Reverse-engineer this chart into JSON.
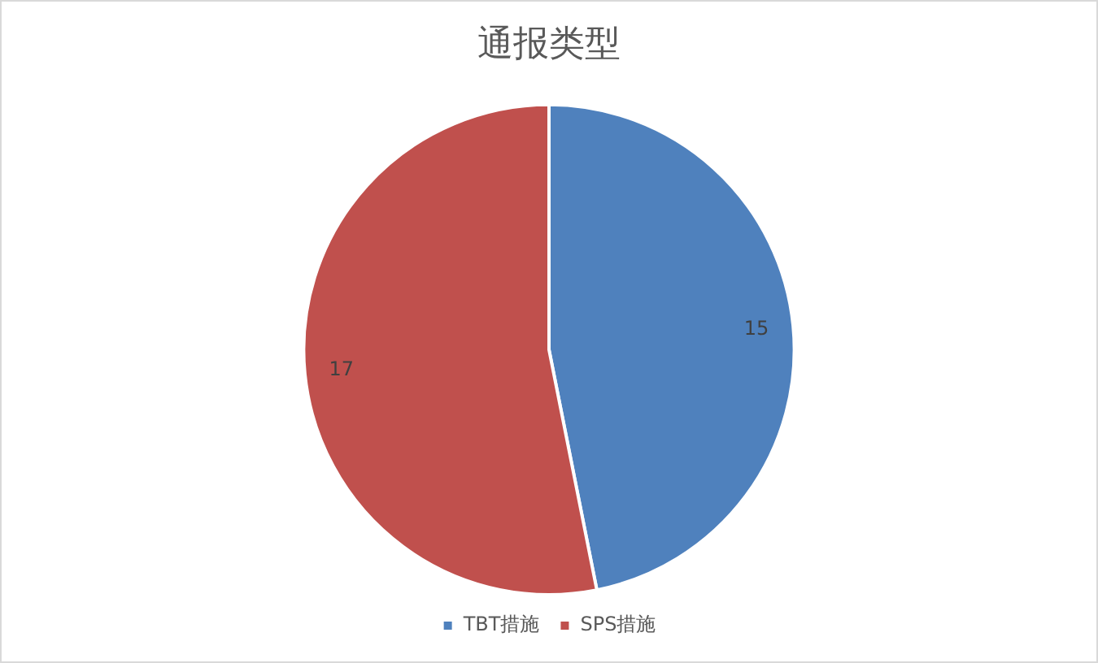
{
  "chart_data": {
    "type": "pie",
    "title": "通报类型",
    "categories": [
      "TBT措施",
      "SPS措施"
    ],
    "values": [
      15,
      17
    ],
    "colors": [
      "#4f81bd",
      "#c0504d"
    ],
    "data_labels": true,
    "legend": "bottom"
  }
}
